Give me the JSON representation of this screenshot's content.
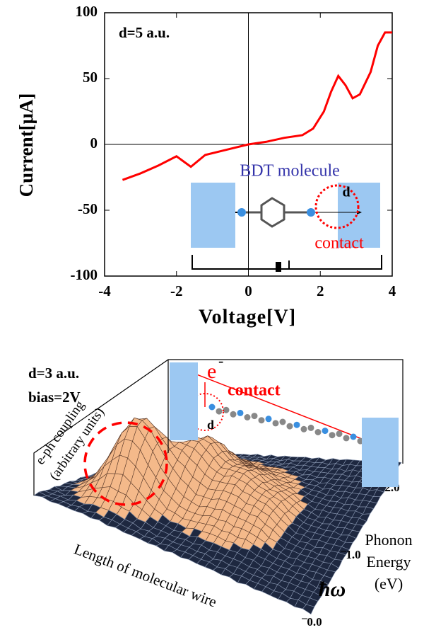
{
  "chart_data": [
    {
      "type": "line",
      "xlabel": "Voltage[V]",
      "ylabel": "Current[μA]",
      "xlim": [
        -4,
        4
      ],
      "ylim": [
        -100,
        100
      ],
      "xticks": [
        -4,
        -2,
        0,
        2,
        4
      ],
      "yticks": [
        -100,
        -50,
        0,
        50,
        100
      ],
      "x": [
        -3.5,
        -3,
        -2.5,
        -2,
        -1.6,
        -1.2,
        -0.6,
        0,
        0.5,
        1,
        1.5,
        1.8,
        2.1,
        2.3,
        2.5,
        2.7,
        2.9,
        3.1,
        3.4,
        3.6,
        3.8,
        4
      ],
      "series": [
        {
          "color": "#ff0000",
          "values": [
            -27,
            -22,
            -16,
            -9,
            -17,
            -8,
            -4,
            0,
            2,
            5,
            7,
            12,
            25,
            40,
            52,
            45,
            35,
            38,
            55,
            75,
            85,
            85
          ]
        }
      ],
      "annotations": [
        "d=5 a.u.",
        "BDT molecule",
        "d",
        "contact"
      ]
    },
    {
      "type": "surface",
      "xlabel": "Length of molecular wire",
      "ylabel": [
        "Phonon",
        "Energy",
        "(eV)"
      ],
      "ysymbol": "ħω",
      "zlabel": [
        "e-ph coupling",
        "(arbitrary units)"
      ],
      "ylim": [
        0,
        2
      ],
      "yticks": [
        {
          "value": 0,
          "label": "0.0"
        },
        {
          "value": 1,
          "label": "1.0"
        },
        {
          "value": 2,
          "label": "2.0"
        }
      ],
      "annotations": [
        "d=3 a.u.",
        "bias=2V",
        "e",
        "-",
        "contact",
        "d"
      ]
    }
  ]
}
